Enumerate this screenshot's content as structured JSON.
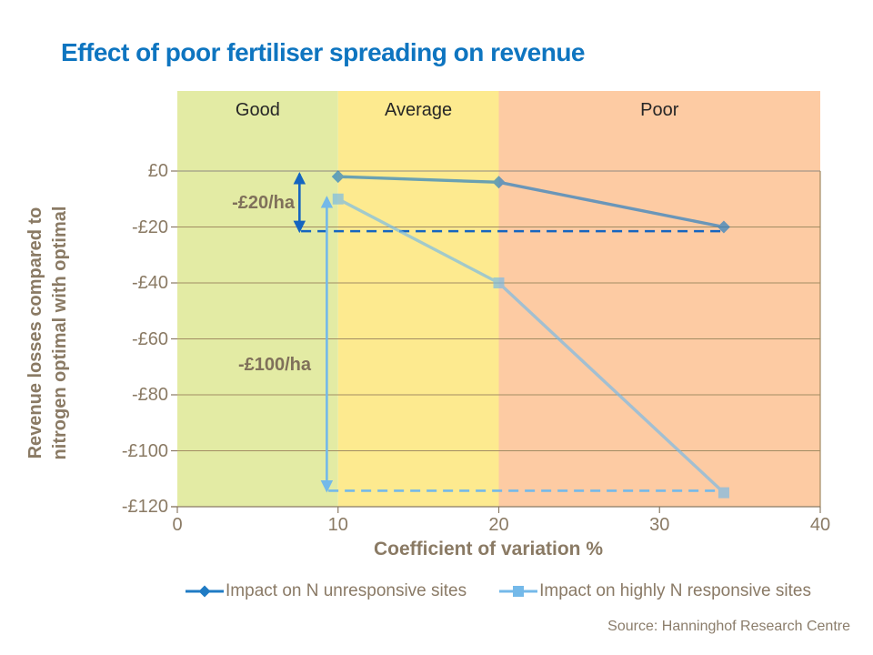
{
  "title": "Effect of poor fertiliser spreading on revenue",
  "source": "Source: Hanninghof  Research Centre",
  "colors": {
    "title_blue": "#0e75c0",
    "axis_text_brown": "#8a7a64",
    "gridline": "#a28c63",
    "axis_line": "#8a7a64",
    "zone_good": "#e3ebа4",
    "zone_good_hex": "#e3eba4",
    "zone_average_hex": "#fdea8f",
    "zone_poor_hex": "#fdcba3",
    "series1_blue": "#1f7bc4",
    "series2_light_blue": "#74b9e9",
    "annotation_dark_blue": "#1565c0",
    "annotation_light_blue": "#74b9e9",
    "source_text": "#8b7d6b",
    "zone_label_text": "#262626"
  },
  "chart_data": {
    "type": "line",
    "title": "Effect of poor fertiliser spreading on revenue",
    "xlabel": "Coefficient of variation %",
    "ylabel_lines": [
      "Revenue losses compared to",
      "nitrogen optimal with optimal"
    ],
    "xlim": [
      0,
      40
    ],
    "ylim": [
      0,
      -120
    ],
    "xticks": [
      0,
      10,
      20,
      30,
      40
    ],
    "yticks": [
      0,
      -20,
      -40,
      -60,
      -80,
      -100,
      -120
    ],
    "ytick_labels": [
      "£0",
      "-£20",
      "-£40",
      "-£60",
      "-£80",
      "-£100",
      "-£120"
    ],
    "grid": "horizontal",
    "legend_position": "bottom",
    "x": [
      10,
      20,
      34
    ],
    "series": [
      {
        "name": "Impact on N unresponsive sites",
        "marker": "diamond",
        "color": "#1f7bc4",
        "values": [
          -2,
          -4,
          -20
        ]
      },
      {
        "name": "Impact on highly N responsive sites",
        "marker": "square",
        "color": "#74b9e9",
        "values": [
          -10,
          -40,
          -115
        ]
      }
    ],
    "zones": [
      {
        "label": "Good",
        "from": 0,
        "to": 10,
        "color": "#e3eba4"
      },
      {
        "label": "Average",
        "from": 10,
        "to": 20,
        "color": "#fdea8f"
      },
      {
        "label": "Poor",
        "from": 20,
        "to": 40,
        "color": "#fdcba3"
      }
    ],
    "annotations": {
      "arrows": [
        {
          "label": "-£20/ha",
          "x": 7.6,
          "from": -1,
          "to": -21.5,
          "style": "dark"
        },
        {
          "label": "-£100/ha",
          "x": 9.3,
          "from": -9.5,
          "to": -114.3,
          "style": "light"
        }
      ],
      "dashed_lines": [
        {
          "y": -21.5,
          "x_from": 7.7,
          "x_to": 33.8,
          "style": "dark"
        },
        {
          "y": -114.3,
          "x_from": 9.4,
          "x_to": 33.8,
          "style": "light"
        }
      ]
    }
  }
}
